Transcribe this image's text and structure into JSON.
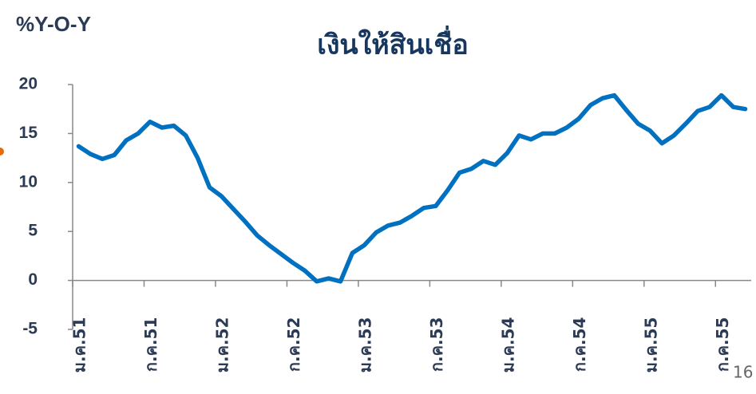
{
  "chart_data": {
    "type": "line",
    "title": "เงินให้สินเชื่อ",
    "y_label": "%Y-O-Y",
    "page_number": "16",
    "categories": [
      "ม.ค.51",
      null,
      null,
      null,
      null,
      null,
      "ก.ค.51",
      null,
      null,
      null,
      null,
      null,
      "ม.ค.52",
      null,
      null,
      null,
      null,
      null,
      "ก.ค.52",
      null,
      null,
      null,
      null,
      null,
      "ม.ค.53",
      null,
      null,
      null,
      null,
      null,
      "ก.ค.53",
      null,
      null,
      null,
      null,
      null,
      "ม.ค.54",
      null,
      null,
      null,
      null,
      null,
      "ก.ค.54",
      null,
      null,
      null,
      null,
      null,
      "ม.ค.55",
      null,
      null,
      null,
      null,
      null,
      "ก.ค.55",
      null,
      null
    ],
    "series": [
      {
        "name": "เงินให้สินเชื่อ",
        "color": "#0070c0",
        "values": [
          13.7,
          12.9,
          12.4,
          12.8,
          14.3,
          15.0,
          16.2,
          15.6,
          15.8,
          14.8,
          12.5,
          9.5,
          8.6,
          7.3,
          6.0,
          4.6,
          3.6,
          2.7,
          1.8,
          1.0,
          -0.1,
          0.2,
          -0.1,
          2.8,
          3.6,
          4.9,
          5.6,
          5.9,
          6.6,
          7.4,
          7.6,
          9.2,
          11.0,
          11.4,
          12.2,
          11.8,
          13.0,
          14.8,
          14.4,
          15.0,
          15.0,
          15.6,
          16.5,
          17.9,
          18.6,
          18.9,
          17.4,
          16.0,
          15.3,
          14.0,
          14.8,
          16.0,
          17.3,
          17.7,
          18.9,
          17.7,
          17.5
        ]
      }
    ],
    "ylim": [
      -5,
      20
    ],
    "yticks": [
      -5,
      0,
      5,
      10,
      15,
      20
    ]
  }
}
